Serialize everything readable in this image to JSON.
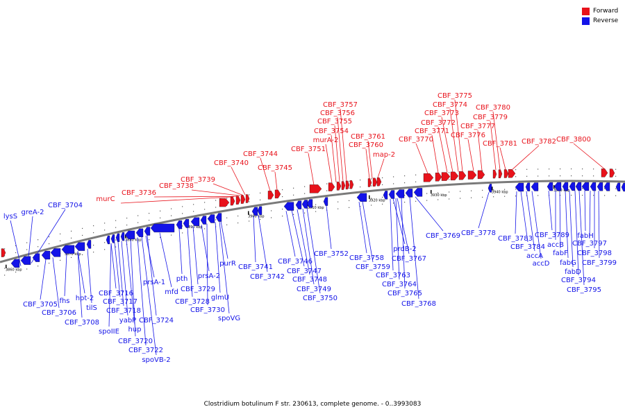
{
  "title": "Clostridium botulinum F str. 230613, complete genome. - 0..3993083",
  "legend": [
    {
      "label": "Forward",
      "color": "#e8121b"
    },
    {
      "label": "Reverse",
      "color": "#1313e8"
    }
  ],
  "colors": {
    "forward": "#e8121b",
    "reverse": "#1313e8",
    "axis": "#7a7a7a"
  },
  "tick_labels": [
    "3860 kbp",
    "3870 kbp",
    "3880 kbp",
    "3890 kbp",
    "3900 kbp",
    "3910 kbp",
    "3920 kbp",
    "3930 kbp",
    "3940 kbp",
    "3950 kbp"
  ],
  "forward_labels": [
    "murC",
    "CBF_3736",
    "CBF_3738",
    "CBF_3739",
    "CBF_3740",
    "CBF_3744",
    "CBF_3745",
    "CBF_3751",
    "CBF_3757",
    "CBF_3756",
    "CBF_3755",
    "CBF_3754",
    "murA-2",
    "CBF_3761",
    "CBF_3760",
    "map-2",
    "CBF_3770",
    "CBF_3775",
    "CBF_3774",
    "CBF_3773",
    "CBF_3772",
    "CBF_3771",
    "CBF_3776",
    "CBF_3777",
    "CBF_3780",
    "CBF_3779",
    "CBF_3781",
    "CBF_3782",
    "CBF_3800"
  ],
  "reverse_labels": [
    "lysS",
    "greA-2",
    "CBF_3704",
    "CBF_3705",
    "CBF_3706",
    "fhs",
    "hpt-2",
    "tilS",
    "CBF_3708",
    "spoIIE",
    "CBF_3716",
    "CBF_3717",
    "CBF_3718",
    "yabP",
    "hup",
    "CBF_3720",
    "CBF_3722",
    "spoVB-2",
    "CBF_3724",
    "prsA-1",
    "mfd",
    "pth",
    "CBF_3728",
    "CBF_3729",
    "prsA-2",
    "CBF_3730",
    "glmU",
    "spoVG",
    "purR",
    "CBF_3741",
    "CBF_3742",
    "CBF_3746",
    "CBF_3747",
    "CBF_3748",
    "CBF_3749",
    "CBF_3750",
    "CBF_3752",
    "CBF_3758",
    "CBF_3759",
    "CBF_3763",
    "prdB-2",
    "CBF_3767",
    "CBF_3764",
    "CBF_3765",
    "CBF_3768",
    "CBF_3769",
    "CBF_3778",
    "CBF_3783",
    "CBF_3784",
    "accA",
    "accD",
    "CBF_3789",
    "accB",
    "fabF",
    "fabG",
    "fabD",
    "CBF_3794",
    "CBF_3795",
    "fabH",
    "CBF_3797",
    "CBF_3798",
    "CBF_3799"
  ]
}
